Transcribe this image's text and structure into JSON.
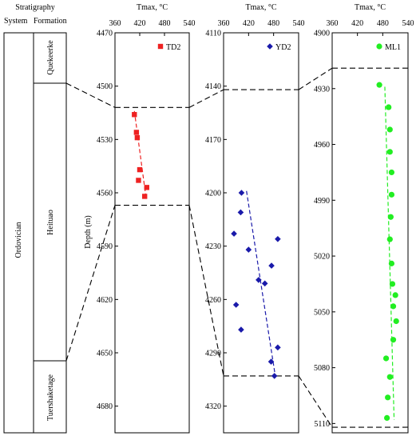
{
  "strat": {
    "header": "Stratigraphy",
    "system_label": "System",
    "formation_label": "Formation",
    "system": "Ordovician",
    "formations": [
      "Quekeerke",
      "Heituao",
      "Tuershaketage"
    ]
  },
  "depth_label": "Depth (m)",
  "chart_data": [
    {
      "type": "scatter",
      "xlabel": "Tmax, °C",
      "ylabel": "Depth (m)",
      "xlim": [
        360,
        540
      ],
      "xticks": [
        360,
        420,
        480,
        540
      ],
      "ylim": [
        4470,
        4695
      ],
      "yticks": [
        4470,
        4500,
        4530,
        4560,
        4590,
        4620,
        4650,
        4680
      ],
      "marker": "square",
      "color": "#ee2222",
      "legend": "top-right",
      "boundaries": [
        4512,
        4567
      ],
      "series": [
        {
          "name": "TD2",
          "points": [
            [
              407,
              4516
            ],
            [
              412,
              4526
            ],
            [
              414,
              4529
            ],
            [
              420,
              4547
            ],
            [
              437,
              4557
            ],
            [
              417,
              4553
            ],
            [
              432,
              4562
            ]
          ]
        }
      ],
      "trend": [
        [
          407,
          4514
        ],
        [
          436,
          4564
        ]
      ]
    },
    {
      "type": "scatter",
      "xlabel": "Tmax, °C",
      "ylabel": "",
      "xlim": [
        360,
        540
      ],
      "xticks": [
        360,
        420,
        480,
        540
      ],
      "ylim": [
        4110,
        4335
      ],
      "yticks": [
        4110,
        4140,
        4170,
        4200,
        4230,
        4260,
        4290,
        4320
      ],
      "marker": "diamond",
      "color": "#1a1aaa",
      "legend": "top-right",
      "boundaries": [
        4142,
        4303
      ],
      "series": [
        {
          "name": "YD2",
          "points": [
            [
              403,
              4200
            ],
            [
              401,
              4211
            ],
            [
              385,
              4223
            ],
            [
              420,
              4232
            ],
            [
              490,
              4226
            ],
            [
              444,
              4249
            ],
            [
              475,
              4241
            ],
            [
              459,
              4251
            ],
            [
              390,
              4263
            ],
            [
              402,
              4277
            ],
            [
              490,
              4287
            ],
            [
              474,
              4295
            ],
            [
              482,
              4303
            ]
          ]
        }
      ],
      "trend": [
        [
          415,
          4199
        ],
        [
          484,
          4303
        ]
      ]
    },
    {
      "type": "scatter",
      "xlabel": "Tmax, °C",
      "ylabel": "",
      "xlim": [
        360,
        540
      ],
      "xticks": [
        360,
        420,
        480,
        540
      ],
      "ylim": [
        4900,
        5115
      ],
      "yticks": [
        4900,
        4930,
        4960,
        4990,
        5020,
        5050,
        5080,
        5110
      ],
      "marker": "circle",
      "color": "#22ee22",
      "legend": "top-right",
      "boundaries": [
        4919,
        5112
      ],
      "series": [
        {
          "name": "ML1",
          "points": [
            [
              472,
              4928
            ],
            [
              494,
              4940
            ],
            [
              497,
              4952
            ],
            [
              497,
              4964
            ],
            [
              501,
              4975
            ],
            [
              501,
              4987
            ],
            [
              499,
              4999
            ],
            [
              497,
              5011
            ],
            [
              501,
              5024
            ],
            [
              503,
              5035
            ],
            [
              510,
              5041
            ],
            [
              505,
              5047
            ],
            [
              512,
              5055
            ],
            [
              505,
              5065
            ],
            [
              488,
              5075
            ],
            [
              497,
              5085
            ],
            [
              492,
              5096
            ],
            [
              490,
              5107
            ]
          ]
        }
      ],
      "trend": [
        [
          485,
          4929
        ],
        [
          507,
          5108
        ]
      ]
    }
  ]
}
